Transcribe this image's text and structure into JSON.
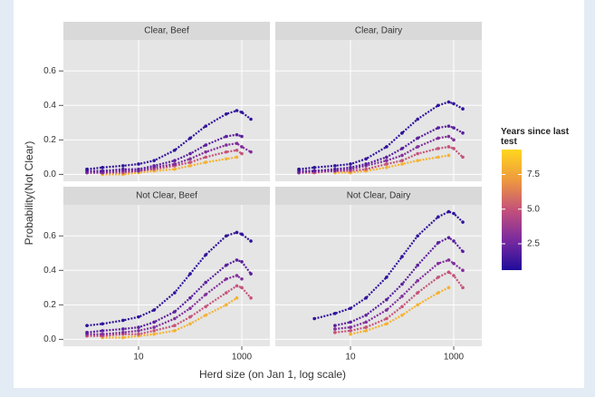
{
  "chart_data": {
    "type": "scatter",
    "xlabel": "Herd size (on Jan 1, log scale)",
    "ylabel": "Probability(Not Clear)",
    "xlog": true,
    "xlim": [
      0.35,
      3500
    ],
    "xticks": [
      10,
      1000
    ],
    "ylim": [
      -0.04,
      0.78
    ],
    "yticks": [
      {
        "value": 0,
        "label": "0.0"
      },
      0.2,
      0.4,
      0.6
    ],
    "grid": true,
    "x": [
      1,
      2,
      5,
      10,
      20,
      50,
      100,
      200,
      500,
      800,
      1000,
      1500
    ],
    "colorbar": {
      "title": "Years since last test",
      "lim": [
        0.6,
        9.3
      ],
      "ticks": [
        2.5,
        {
          "value": 5,
          "label": "5.0"
        },
        7.5
      ],
      "colors": [
        "#1f0c9a",
        "#7a2aa0",
        "#c4517a",
        "#ee9a3e",
        "#ffd61e"
      ]
    },
    "facets": [
      {
        "title": "Clear, Beef",
        "series": [
          {
            "years": 1,
            "values": [
              0.03,
              0.04,
              0.05,
              0.06,
              0.08,
              0.14,
              0.21,
              0.28,
              0.35,
              0.37,
              0.36,
              0.32
            ]
          },
          {
            "years": 2,
            "values": [
              0.02,
              0.02,
              0.03,
              0.03,
              0.05,
              0.08,
              0.12,
              0.17,
              0.22,
              0.23,
              0.22,
              null
            ]
          },
          {
            "years": 3,
            "values": [
              0.01,
              0.01,
              0.02,
              0.02,
              0.04,
              0.06,
              0.09,
              0.13,
              0.17,
              0.18,
              0.16,
              0.13
            ]
          },
          {
            "years": 5,
            "values": [
              0.01,
              0.01,
              0.01,
              0.02,
              0.03,
              0.05,
              0.07,
              0.1,
              0.13,
              0.14,
              0.12,
              null
            ]
          },
          {
            "years": 8,
            "values": [
              null,
              0.0,
              0.0,
              0.01,
              0.02,
              0.03,
              0.05,
              0.07,
              0.09,
              0.1,
              null,
              null
            ]
          }
        ]
      },
      {
        "title": "Clear, Dairy",
        "series": [
          {
            "years": 1,
            "values": [
              0.03,
              0.04,
              0.05,
              0.06,
              0.09,
              0.16,
              0.24,
              0.32,
              0.4,
              0.42,
              0.41,
              0.38
            ]
          },
          {
            "years": 2,
            "values": [
              0.02,
              0.02,
              0.03,
              0.04,
              0.06,
              0.1,
              0.15,
              0.21,
              0.27,
              0.28,
              0.27,
              0.24
            ]
          },
          {
            "years": 3,
            "values": [
              0.01,
              0.02,
              0.02,
              0.03,
              0.05,
              0.08,
              0.11,
              0.16,
              0.21,
              0.22,
              0.2,
              null
            ]
          },
          {
            "years": 5,
            "values": [
              0.01,
              0.01,
              0.02,
              0.02,
              0.03,
              0.06,
              0.08,
              0.12,
              0.15,
              0.16,
              0.15,
              0.1
            ]
          },
          {
            "years": 8,
            "values": [
              null,
              null,
              0.01,
              0.01,
              0.02,
              0.04,
              0.06,
              0.08,
              0.1,
              0.11,
              null,
              null
            ]
          }
        ]
      },
      {
        "title": "Not Clear, Beef",
        "series": [
          {
            "years": 1,
            "values": [
              0.08,
              0.09,
              0.11,
              0.13,
              0.17,
              0.27,
              0.38,
              0.49,
              0.6,
              0.62,
              0.61,
              0.57
            ]
          },
          {
            "years": 2,
            "values": [
              0.04,
              0.05,
              0.06,
              0.07,
              0.1,
              0.16,
              0.24,
              0.33,
              0.43,
              0.46,
              0.45,
              0.38
            ]
          },
          {
            "years": 3,
            "values": [
              0.03,
              0.03,
              0.04,
              0.05,
              0.07,
              0.12,
              0.18,
              0.26,
              0.35,
              0.37,
              0.35,
              null
            ]
          },
          {
            "years": 5,
            "values": [
              0.02,
              0.02,
              0.03,
              0.03,
              0.05,
              0.08,
              0.13,
              0.19,
              0.27,
              0.31,
              0.3,
              0.24
            ]
          },
          {
            "years": 8,
            "values": [
              null,
              0.01,
              0.01,
              0.02,
              0.03,
              0.05,
              0.09,
              0.14,
              0.2,
              0.24,
              null,
              null
            ]
          }
        ]
      },
      {
        "title": "Not Clear, Dairy",
        "series": [
          {
            "years": 1,
            "values": [
              null,
              0.12,
              0.15,
              0.18,
              0.24,
              0.36,
              0.48,
              0.6,
              0.71,
              0.74,
              0.73,
              0.68
            ]
          },
          {
            "years": 2,
            "values": [
              null,
              null,
              0.08,
              0.1,
              0.14,
              0.23,
              0.32,
              0.43,
              0.56,
              0.59,
              0.57,
              0.51
            ]
          },
          {
            "years": 3,
            "values": [
              null,
              null,
              0.06,
              0.07,
              0.1,
              0.17,
              0.25,
              0.34,
              0.44,
              0.46,
              0.44,
              0.4
            ]
          },
          {
            "years": 5,
            "values": [
              null,
              null,
              0.04,
              0.05,
              0.07,
              0.12,
              0.19,
              0.27,
              0.36,
              0.39,
              0.37,
              0.3
            ]
          },
          {
            "years": 8,
            "values": [
              null,
              null,
              null,
              0.03,
              0.05,
              0.09,
              0.14,
              0.2,
              0.27,
              0.3,
              null,
              null
            ]
          }
        ]
      }
    ]
  }
}
